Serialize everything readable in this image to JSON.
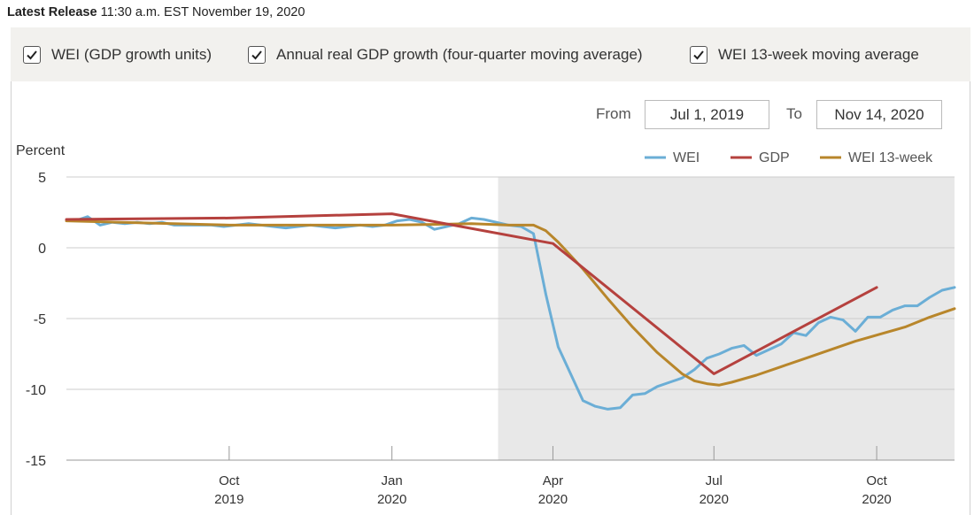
{
  "release": {
    "label": "Latest Release",
    "value": "11:30 a.m. EST November 19, 2020"
  },
  "toggles": [
    {
      "label": "WEI (GDP growth units)",
      "checked": true
    },
    {
      "label": "Annual real GDP growth (four-quarter moving average)",
      "checked": true
    },
    {
      "label": "WEI 13-week moving average",
      "checked": true
    }
  ],
  "range": {
    "from_label": "From",
    "from_value": "Jul 1, 2019",
    "to_label": "To",
    "to_value": "Nov 14, 2020"
  },
  "colors": {
    "wei": "#6baed6",
    "gdp": "#b5413e",
    "wei13": "#b8862b",
    "shade": "#e8e8e8",
    "grid": "#cccccc"
  },
  "chart_data": {
    "type": "line",
    "ylabel": "Percent",
    "ylim": [
      -15,
      5
    ],
    "yticks": [
      5,
      0,
      -5,
      -10,
      -15
    ],
    "xlim": [
      "2019-07-01",
      "2020-11-14"
    ],
    "xticks": [
      {
        "date": "2019-10-01",
        "month": "Oct",
        "year": "2019"
      },
      {
        "date": "2020-01-01",
        "month": "Jan",
        "year": "2020"
      },
      {
        "date": "2020-04-01",
        "month": "Apr",
        "year": "2020"
      },
      {
        "date": "2020-07-01",
        "month": "Jul",
        "year": "2020"
      },
      {
        "date": "2020-10-01",
        "month": "Oct",
        "year": "2020"
      }
    ],
    "recession_shading": {
      "start": "2020-03-01",
      "end": "2020-11-14"
    },
    "legend": [
      {
        "key": "wei",
        "label": "WEI"
      },
      {
        "key": "gdp",
        "label": "GDP"
      },
      {
        "key": "wei13",
        "label": "WEI 13-week"
      }
    ],
    "series": [
      {
        "name": "WEI",
        "key": "wei",
        "points": [
          [
            "2019-07-06",
            1.9
          ],
          [
            "2019-07-13",
            2.2
          ],
          [
            "2019-07-20",
            1.6
          ],
          [
            "2019-07-27",
            1.8
          ],
          [
            "2019-08-03",
            1.7
          ],
          [
            "2019-08-10",
            1.8
          ],
          [
            "2019-08-17",
            1.7
          ],
          [
            "2019-08-24",
            1.8
          ],
          [
            "2019-08-31",
            1.6
          ],
          [
            "2019-09-07",
            1.6
          ],
          [
            "2019-09-14",
            1.6
          ],
          [
            "2019-09-21",
            1.6
          ],
          [
            "2019-09-28",
            1.5
          ],
          [
            "2019-10-05",
            1.6
          ],
          [
            "2019-10-12",
            1.7
          ],
          [
            "2019-10-19",
            1.6
          ],
          [
            "2019-10-26",
            1.5
          ],
          [
            "2019-11-02",
            1.4
          ],
          [
            "2019-11-09",
            1.5
          ],
          [
            "2019-11-16",
            1.6
          ],
          [
            "2019-11-23",
            1.5
          ],
          [
            "2019-11-30",
            1.4
          ],
          [
            "2019-12-07",
            1.5
          ],
          [
            "2019-12-14",
            1.6
          ],
          [
            "2019-12-21",
            1.5
          ],
          [
            "2019-12-28",
            1.6
          ],
          [
            "2020-01-04",
            1.9
          ],
          [
            "2020-01-11",
            2.0
          ],
          [
            "2020-01-18",
            1.8
          ],
          [
            "2020-01-25",
            1.3
          ],
          [
            "2020-02-01",
            1.5
          ],
          [
            "2020-02-08",
            1.7
          ],
          [
            "2020-02-15",
            2.1
          ],
          [
            "2020-02-22",
            2.0
          ],
          [
            "2020-02-29",
            1.8
          ],
          [
            "2020-03-07",
            1.6
          ],
          [
            "2020-03-14",
            1.5
          ],
          [
            "2020-03-21",
            1.0
          ],
          [
            "2020-03-28",
            -3.3
          ],
          [
            "2020-04-04",
            -7.0
          ],
          [
            "2020-04-11",
            -8.9
          ],
          [
            "2020-04-18",
            -10.8
          ],
          [
            "2020-04-25",
            -11.2
          ],
          [
            "2020-05-02",
            -11.4
          ],
          [
            "2020-05-09",
            -11.3
          ],
          [
            "2020-05-16",
            -10.4
          ],
          [
            "2020-05-23",
            -10.3
          ],
          [
            "2020-05-30",
            -9.8
          ],
          [
            "2020-06-06",
            -9.5
          ],
          [
            "2020-06-13",
            -9.2
          ],
          [
            "2020-06-20",
            -8.6
          ],
          [
            "2020-06-27",
            -7.8
          ],
          [
            "2020-07-04",
            -7.5
          ],
          [
            "2020-07-11",
            -7.1
          ],
          [
            "2020-07-18",
            -6.9
          ],
          [
            "2020-07-25",
            -7.6
          ],
          [
            "2020-08-01",
            -7.2
          ],
          [
            "2020-08-08",
            -6.8
          ],
          [
            "2020-08-15",
            -6.0
          ],
          [
            "2020-08-22",
            -6.2
          ],
          [
            "2020-08-29",
            -5.3
          ],
          [
            "2020-09-05",
            -4.9
          ],
          [
            "2020-09-12",
            -5.1
          ],
          [
            "2020-09-19",
            -5.9
          ],
          [
            "2020-09-26",
            -4.9
          ],
          [
            "2020-10-03",
            -4.9
          ],
          [
            "2020-10-10",
            -4.4
          ],
          [
            "2020-10-17",
            -4.1
          ],
          [
            "2020-10-24",
            -4.1
          ],
          [
            "2020-10-31",
            -3.5
          ],
          [
            "2020-11-07",
            -3.0
          ],
          [
            "2020-11-14",
            -2.8
          ]
        ]
      },
      {
        "name": "GDP",
        "key": "gdp",
        "points": [
          [
            "2019-07-01",
            2.0
          ],
          [
            "2019-10-01",
            2.1
          ],
          [
            "2020-01-01",
            2.4
          ],
          [
            "2020-04-01",
            0.3
          ],
          [
            "2020-07-01",
            -8.9
          ],
          [
            "2020-10-01",
            -2.8
          ]
        ]
      },
      {
        "name": "WEI 13-week",
        "key": "wei13",
        "points": [
          [
            "2019-07-01",
            1.9
          ],
          [
            "2019-10-01",
            1.6
          ],
          [
            "2020-01-01",
            1.6
          ],
          [
            "2020-02-15",
            1.7
          ],
          [
            "2020-03-07",
            1.6
          ],
          [
            "2020-03-21",
            1.6
          ],
          [
            "2020-03-28",
            1.2
          ],
          [
            "2020-04-04",
            0.4
          ],
          [
            "2020-04-18",
            -1.5
          ],
          [
            "2020-05-02",
            -3.6
          ],
          [
            "2020-05-16",
            -5.6
          ],
          [
            "2020-05-30",
            -7.4
          ],
          [
            "2020-06-13",
            -8.9
          ],
          [
            "2020-06-20",
            -9.4
          ],
          [
            "2020-06-27",
            -9.6
          ],
          [
            "2020-07-04",
            -9.7
          ],
          [
            "2020-07-11",
            -9.5
          ],
          [
            "2020-07-25",
            -9.0
          ],
          [
            "2020-08-08",
            -8.4
          ],
          [
            "2020-08-22",
            -7.8
          ],
          [
            "2020-09-05",
            -7.2
          ],
          [
            "2020-09-19",
            -6.6
          ],
          [
            "2020-10-03",
            -6.1
          ],
          [
            "2020-10-17",
            -5.6
          ],
          [
            "2020-10-31",
            -4.9
          ],
          [
            "2020-11-14",
            -4.3
          ]
        ]
      }
    ]
  }
}
